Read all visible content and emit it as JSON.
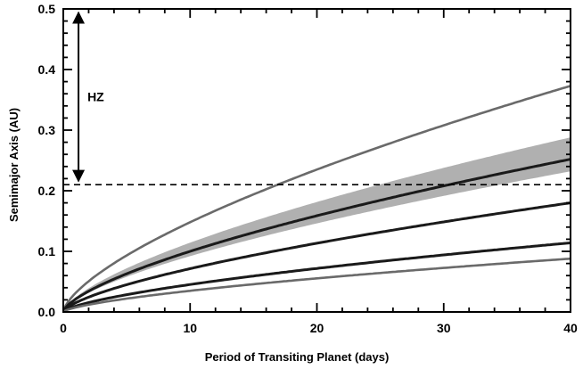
{
  "chart_data": {
    "type": "line",
    "title": "",
    "xlabel": "Period of Transiting Planet (days)",
    "ylabel": "Semimajor Axis (AU)",
    "xlim": [
      0,
      40
    ],
    "ylim": [
      0,
      0.5
    ],
    "xticks": [
      0,
      10,
      20,
      30,
      40
    ],
    "yticks": [
      0.0,
      0.1,
      0.2,
      0.3,
      0.4,
      0.5
    ],
    "xtick_labels": [
      "0",
      "10",
      "20",
      "30",
      "40"
    ],
    "ytick_labels": [
      "0.0",
      "0.1",
      "0.2",
      "0.3",
      "0.4",
      "0.5"
    ],
    "grid": false,
    "series": [
      {
        "name": "curve-gray-top",
        "color": "#6a6a6a",
        "a_at_40_days": 0.373
      },
      {
        "name": "curve-black-2",
        "color": "#1a1a1a",
        "a_at_40_days": 0.252
      },
      {
        "name": "curve-black-3",
        "color": "#1a1a1a",
        "a_at_40_days": 0.18
      },
      {
        "name": "curve-black-4",
        "color": "#1a1a1a",
        "a_at_40_days": 0.114
      },
      {
        "name": "curve-gray-bottom",
        "color": "#6a6a6a",
        "a_at_40_days": 0.088
      }
    ],
    "band": {
      "name": "uncertainty-band",
      "color": "#b0b0b0",
      "a_low_at_40_days": 0.232,
      "a_high_at_40_days": 0.288
    },
    "hz_boundaries": [
      0.21,
      0.5
    ],
    "annotations": [
      {
        "text": "HZ",
        "type": "double-arrow",
        "from_y": 0.21,
        "to_y": 0.5,
        "x": 1.2
      }
    ]
  }
}
